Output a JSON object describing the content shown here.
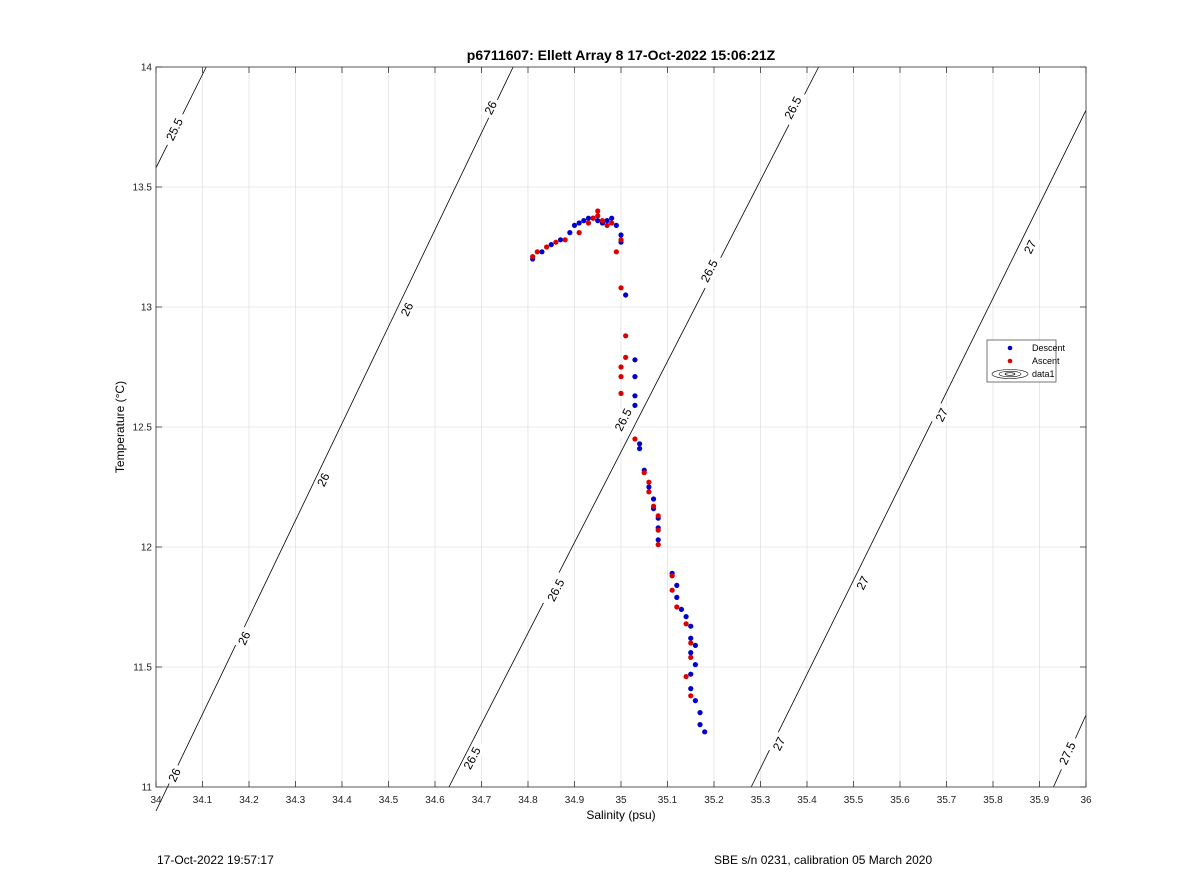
{
  "chart_data": {
    "type": "scatter",
    "title": "p6711607: Ellett Array 8 17-Oct-2022 15:06:21Z",
    "xlabel": "Salinity (psu)",
    "ylabel": "Temperature (°C)",
    "xlim": [
      34,
      36
    ],
    "ylim": [
      11,
      14
    ],
    "xticks": [
      "34",
      "34.1",
      "34.2",
      "34.3",
      "34.4",
      "34.5",
      "34.6",
      "34.7",
      "34.8",
      "34.9",
      "35",
      "35.1",
      "35.2",
      "35.3",
      "35.4",
      "35.5",
      "35.6",
      "35.7",
      "35.8",
      "35.9",
      "36"
    ],
    "yticks": [
      "11",
      "11.5",
      "12",
      "12.5",
      "13",
      "13.5",
      "14"
    ],
    "grid": true,
    "legend_placement": "right",
    "legend": [
      "Descent",
      "Ascent",
      "data1"
    ],
    "colors": {
      "descent": "#0000cc",
      "ascent": "#dd0000",
      "contour": "#000000",
      "grid": "#e2e2e2"
    },
    "series": [
      {
        "name": "Descent",
        "points": [
          [
            34.81,
            13.2
          ],
          [
            34.83,
            13.23
          ],
          [
            34.85,
            13.26
          ],
          [
            34.87,
            13.28
          ],
          [
            34.89,
            13.31
          ],
          [
            34.9,
            13.34
          ],
          [
            34.91,
            13.35
          ],
          [
            34.92,
            13.36
          ],
          [
            34.93,
            13.37
          ],
          [
            34.94,
            13.37
          ],
          [
            34.95,
            13.36
          ],
          [
            34.96,
            13.35
          ],
          [
            34.97,
            13.36
          ],
          [
            34.98,
            13.37
          ],
          [
            34.99,
            13.34
          ],
          [
            35.0,
            13.3
          ],
          [
            35.0,
            13.27
          ],
          [
            35.01,
            13.05
          ],
          [
            35.03,
            12.78
          ],
          [
            35.03,
            12.71
          ],
          [
            35.03,
            12.63
          ],
          [
            35.03,
            12.59
          ],
          [
            35.04,
            12.43
          ],
          [
            35.04,
            12.41
          ],
          [
            35.05,
            12.32
          ],
          [
            35.06,
            12.25
          ],
          [
            35.07,
            12.2
          ],
          [
            35.07,
            12.16
          ],
          [
            35.08,
            12.12
          ],
          [
            35.08,
            12.08
          ],
          [
            35.08,
            12.03
          ],
          [
            35.11,
            11.89
          ],
          [
            35.12,
            11.84
          ],
          [
            35.12,
            11.79
          ],
          [
            35.13,
            11.74
          ],
          [
            35.14,
            11.71
          ],
          [
            35.15,
            11.67
          ],
          [
            35.15,
            11.62
          ],
          [
            35.16,
            11.59
          ],
          [
            35.15,
            11.56
          ],
          [
            35.16,
            11.51
          ],
          [
            35.15,
            11.47
          ],
          [
            35.15,
            11.41
          ],
          [
            35.16,
            11.36
          ],
          [
            35.17,
            11.31
          ],
          [
            35.17,
            11.26
          ],
          [
            35.18,
            11.23
          ]
        ]
      },
      {
        "name": "Ascent",
        "points": [
          [
            34.81,
            13.21
          ],
          [
            34.82,
            13.23
          ],
          [
            34.84,
            13.25
          ],
          [
            34.86,
            13.27
          ],
          [
            34.88,
            13.28
          ],
          [
            34.91,
            13.31
          ],
          [
            34.93,
            13.35
          ],
          [
            34.94,
            13.37
          ],
          [
            34.95,
            13.4
          ],
          [
            34.95,
            13.38
          ],
          [
            34.96,
            13.36
          ],
          [
            34.97,
            13.34
          ],
          [
            34.98,
            13.35
          ],
          [
            35.0,
            13.28
          ],
          [
            34.99,
            13.23
          ],
          [
            35.0,
            13.08
          ],
          [
            35.01,
            12.88
          ],
          [
            35.01,
            12.79
          ],
          [
            35.0,
            12.75
          ],
          [
            35.0,
            12.71
          ],
          [
            35.0,
            12.64
          ],
          [
            35.03,
            12.45
          ],
          [
            35.05,
            12.31
          ],
          [
            35.06,
            12.27
          ],
          [
            35.06,
            12.23
          ],
          [
            35.07,
            12.17
          ],
          [
            35.08,
            12.13
          ],
          [
            35.08,
            12.07
          ],
          [
            35.08,
            12.01
          ],
          [
            35.11,
            11.88
          ],
          [
            35.11,
            11.82
          ],
          [
            35.12,
            11.75
          ],
          [
            35.14,
            11.68
          ],
          [
            35.15,
            11.6
          ],
          [
            35.15,
            11.54
          ],
          [
            35.14,
            11.46
          ],
          [
            35.15,
            11.38
          ]
        ]
      }
    ],
    "isopycnals": [
      {
        "label": "25.5",
        "segments": [
          [
            [
              34.0,
              13.58
            ],
            [
              34.108,
              14.0
            ]
          ]
        ],
        "labels_at": [
          [
            34.04,
            13.74,
            "25.5"
          ]
        ]
      },
      {
        "label": "26",
        "segments": [
          [
            [
              34.0,
              10.9
            ],
            [
              34.768,
              14.0
            ]
          ]
        ],
        "labels_at": [
          [
            34.04,
            11.05,
            "26"
          ],
          [
            34.19,
            11.62,
            "26"
          ],
          [
            34.36,
            12.28,
            "26"
          ],
          [
            34.54,
            12.99,
            "26"
          ],
          [
            34.72,
            13.83,
            "26"
          ]
        ]
      },
      {
        "label": "26.5",
        "segments": [
          [
            [
              34.63,
              11.0
            ],
            [
              35.425,
              14.0
            ]
          ]
        ],
        "labels_at": [
          [
            34.68,
            11.12,
            "26.5"
          ],
          [
            34.86,
            11.82,
            "26.5"
          ],
          [
            35.005,
            12.53,
            "26.5"
          ],
          [
            35.19,
            13.15,
            "26.5"
          ],
          [
            35.37,
            13.83,
            "26.5"
          ]
        ]
      },
      {
        "label": "27",
        "segments": [
          [
            [
              35.28,
              11.0
            ],
            [
              36.0,
              13.82
            ]
          ]
        ],
        "labels_at": [
          [
            35.34,
            11.18,
            "27"
          ],
          [
            35.52,
            11.85,
            "27"
          ],
          [
            35.69,
            12.55,
            "27"
          ],
          [
            35.88,
            13.25,
            "27"
          ]
        ]
      },
      {
        "label": "27.5",
        "segments": [
          [
            [
              35.93,
              11.0
            ],
            [
              36.0,
              11.3
            ]
          ]
        ],
        "labels_at": [
          [
            35.96,
            11.14,
            "27.5"
          ]
        ]
      }
    ]
  },
  "footer": {
    "left": "17-Oct-2022 19:57:17",
    "right": "SBE s/n 0231, calibration 05 March 2020"
  }
}
